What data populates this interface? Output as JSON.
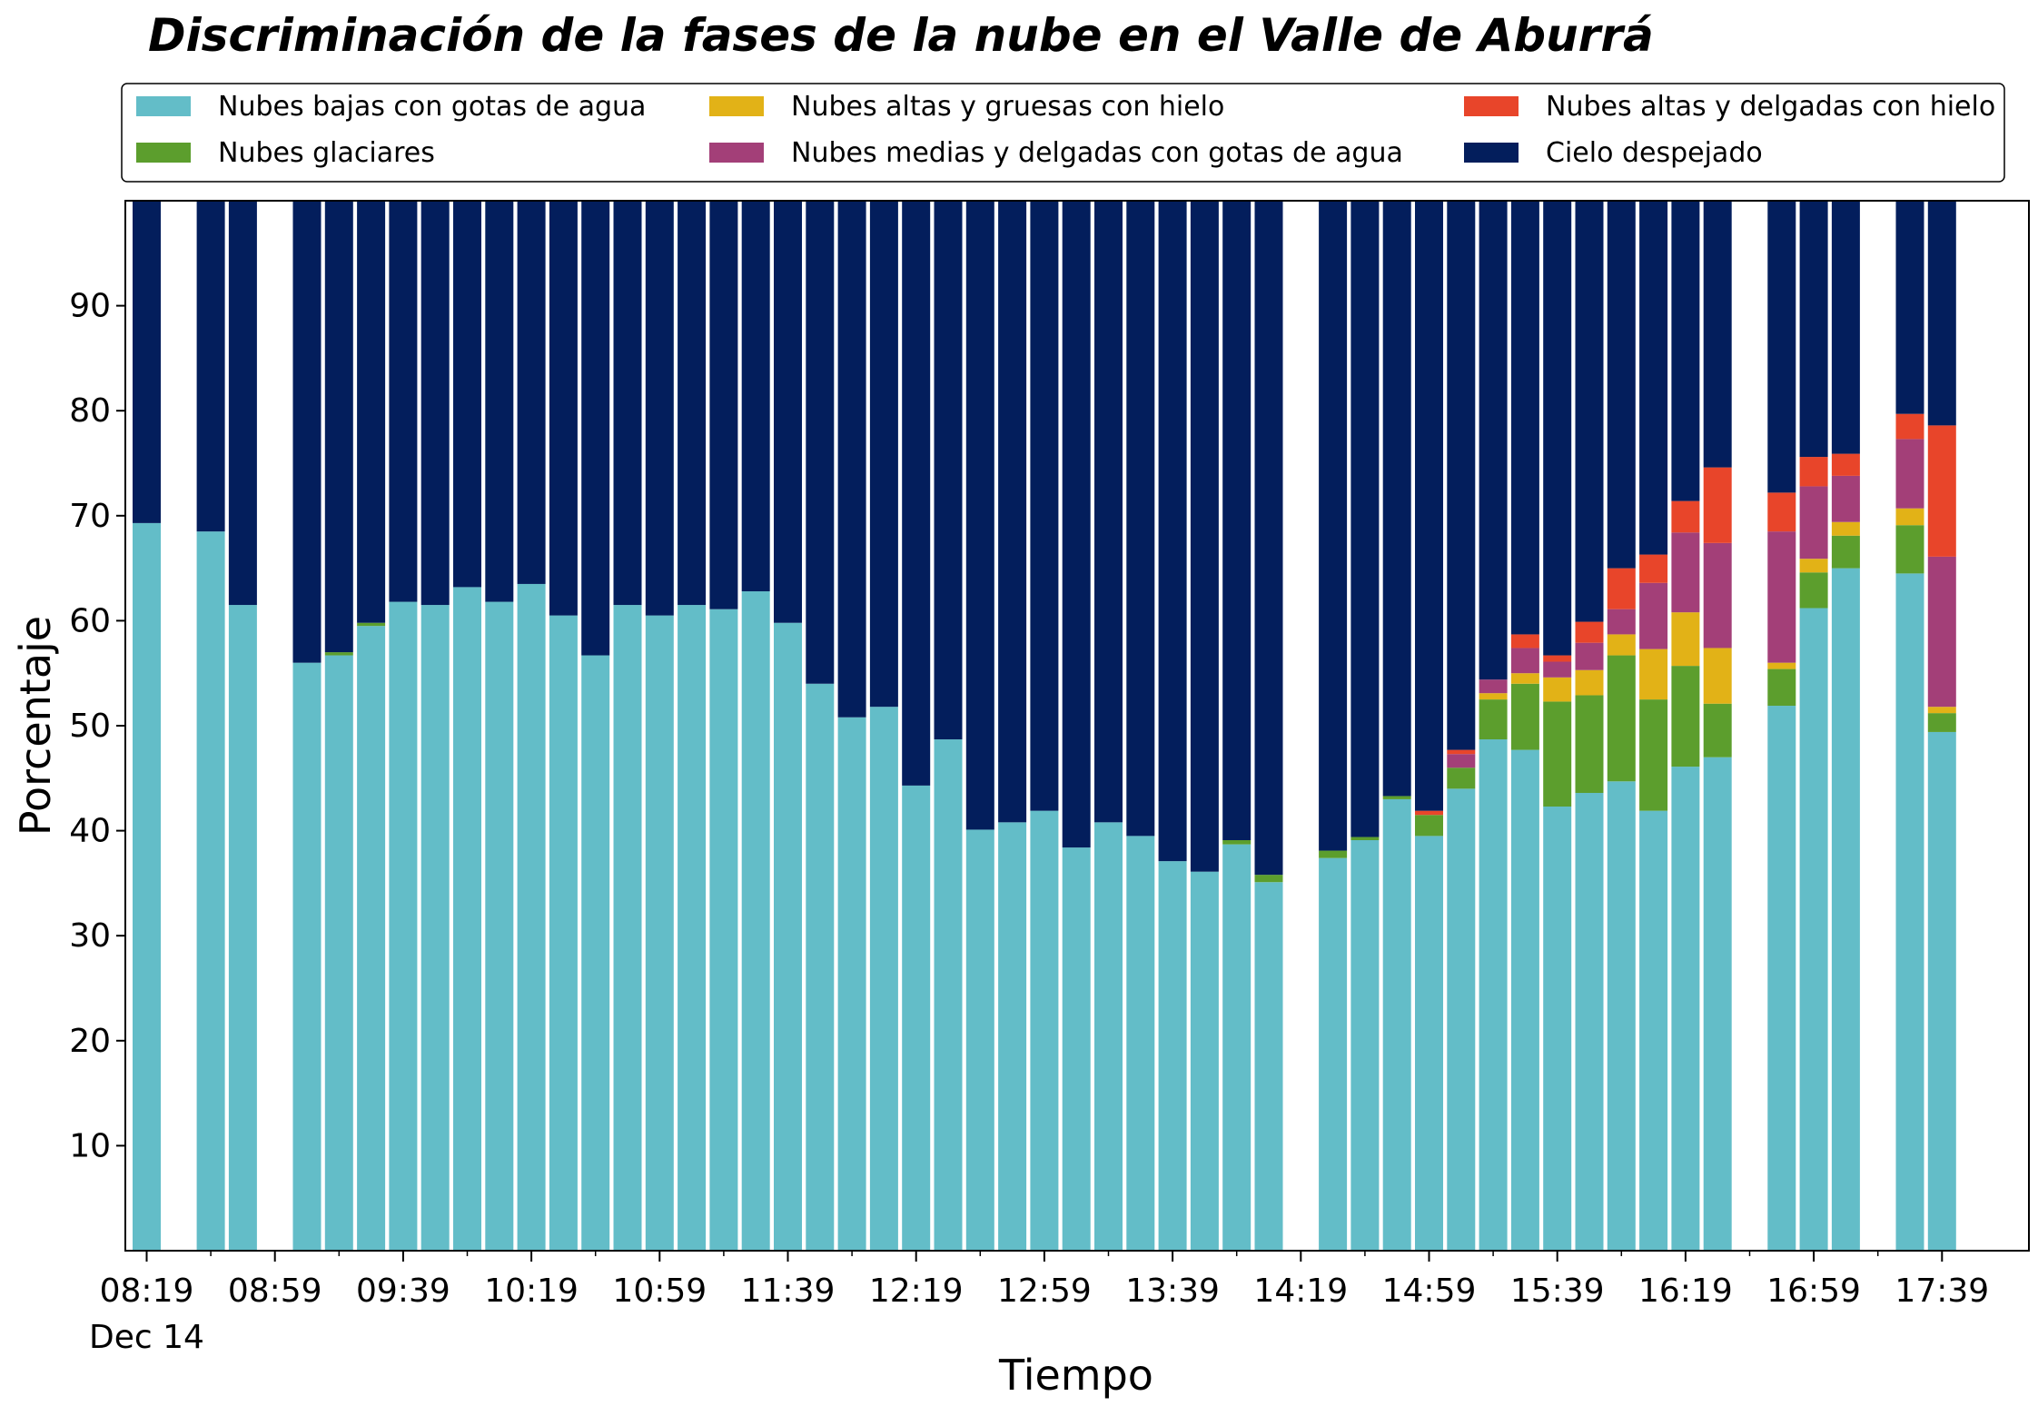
{
  "chart_data": {
    "type": "bar",
    "stacked": true,
    "title": "Discriminación de la fases de la nube en el Valle de Aburrá",
    "xlabel": "Tiempo",
    "ylabel": "Porcentaje",
    "ylim": [
      0,
      100
    ],
    "yticks": [
      10,
      20,
      30,
      40,
      50,
      60,
      70,
      80,
      90
    ],
    "x_slot_minutes": 10,
    "x_start": "08:19",
    "x_end": "17:49",
    "xticks": [
      "08:19",
      "08:59",
      "09:39",
      "10:19",
      "10:59",
      "11:39",
      "12:19",
      "12:59",
      "13:39",
      "14:19",
      "14:59",
      "15:39",
      "16:19",
      "16:59",
      "17:39"
    ],
    "xtick_sublabel": "Dec 14",
    "grid": false,
    "legend": {
      "position": "top",
      "columns": 3
    },
    "categories": [
      "08:19",
      "08:39",
      "08:49",
      "09:09",
      "09:19",
      "09:29",
      "09:39",
      "09:49",
      "09:59",
      "10:09",
      "10:19",
      "10:29",
      "10:39",
      "10:49",
      "10:59",
      "11:09",
      "11:19",
      "11:29",
      "11:39",
      "11:49",
      "11:59",
      "12:09",
      "12:19",
      "12:29",
      "12:39",
      "12:49",
      "12:59",
      "13:09",
      "13:19",
      "13:29",
      "13:39",
      "13:49",
      "13:59",
      "14:09",
      "14:29",
      "14:39",
      "14:49",
      "14:59",
      "15:09",
      "15:19",
      "15:29",
      "15:39",
      "15:49",
      "15:59",
      "16:09",
      "16:19",
      "16:29",
      "16:49",
      "16:59",
      "17:09",
      "17:29",
      "17:39",
      "17:59"
    ],
    "series": [
      {
        "name": "Nubes bajas con gotas de agua",
        "color": "#63bdc8",
        "values": [
          69.3,
          68.5,
          61.5,
          56,
          56.7,
          59.5,
          61.8,
          61.5,
          63.2,
          61.8,
          63.5,
          60.5,
          56.7,
          61.5,
          60.5,
          61.5,
          61.1,
          62.8,
          59.8,
          54,
          50.8,
          51.8,
          44.3,
          48.7,
          40.1,
          40.8,
          41.9,
          38.4,
          40.8,
          39.5,
          37.1,
          36.1,
          38.7,
          35.1,
          37.4,
          39.1,
          43,
          39.5,
          44,
          48.7,
          47.7,
          42.3,
          43.6,
          44.7,
          41.9,
          46.1,
          47,
          51.9,
          61.2,
          65,
          64.5,
          49.4,
          0
        ]
      },
      {
        "name": "Nubes glaciares",
        "color": "#5c9e2d",
        "values": [
          0,
          0,
          0,
          0,
          0.3,
          0.3,
          0,
          0,
          0,
          0,
          0,
          0,
          0,
          0,
          0,
          0,
          0,
          0,
          0,
          0,
          0,
          0,
          0,
          0,
          0,
          0,
          0,
          0,
          0,
          0,
          0,
          0,
          0.4,
          0.7,
          0.7,
          0.3,
          0.3,
          2,
          2,
          3.8,
          6.3,
          10,
          9.3,
          12,
          10.6,
          9.6,
          5.1,
          3.5,
          3.4,
          3.1,
          4.6,
          1.8,
          0
        ]
      },
      {
        "name": "Nubes altas y gruesas con hielo",
        "color": "#e2b217",
        "values": [
          0,
          0,
          0,
          0,
          0,
          0,
          0,
          0,
          0,
          0,
          0,
          0,
          0,
          0,
          0,
          0,
          0,
          0,
          0,
          0,
          0,
          0,
          0,
          0,
          0,
          0,
          0,
          0,
          0,
          0,
          0,
          0,
          0,
          0,
          0,
          0,
          0,
          0,
          0,
          0.6,
          1,
          2.3,
          2.4,
          2,
          4.8,
          5.1,
          5.3,
          0.6,
          1.3,
          1.3,
          1.6,
          0.6,
          0
        ]
      },
      {
        "name": "Nubes medias y delgadas con gotas de agua",
        "color": "#a33f78",
        "values": [
          0,
          0,
          0,
          0,
          0,
          0,
          0,
          0,
          0,
          0,
          0,
          0,
          0,
          0,
          0,
          0,
          0,
          0,
          0,
          0,
          0,
          0,
          0,
          0,
          0,
          0,
          0,
          0,
          0,
          0,
          0,
          0,
          0,
          0,
          0,
          0,
          0,
          0,
          1.3,
          1.3,
          2.4,
          1.5,
          2.6,
          2.4,
          6.3,
          7.6,
          10,
          12.5,
          6.9,
          4.4,
          6.6,
          14.3,
          0
        ]
      },
      {
        "name": "Nubes altas y delgadas con hielo",
        "color": "#e8452a",
        "values": [
          0,
          0,
          0,
          0,
          0,
          0,
          0,
          0,
          0,
          0,
          0,
          0,
          0,
          0,
          0,
          0,
          0,
          0,
          0,
          0,
          0,
          0,
          0,
          0,
          0,
          0,
          0,
          0,
          0,
          0,
          0,
          0,
          0,
          0,
          0,
          0,
          0,
          0.4,
          0.4,
          0,
          1.3,
          0.6,
          2,
          3.9,
          2.7,
          3,
          7.2,
          3.7,
          2.8,
          2.1,
          2.4,
          12.5,
          0
        ]
      },
      {
        "name": "Cielo despejado",
        "color": "#031e5c",
        "values": [
          30.7,
          31.5,
          38.5,
          44,
          43,
          40.2,
          38.2,
          38.5,
          36.8,
          38.2,
          36.5,
          39.5,
          43.3,
          38.5,
          39.5,
          38.5,
          38.9,
          37.2,
          40.2,
          46,
          49.2,
          48.2,
          55.7,
          51.3,
          59.9,
          59.2,
          58.1,
          61.6,
          59.2,
          60.5,
          62.9,
          63.9,
          60.9,
          64.2,
          61.9,
          60.6,
          56.7,
          58.1,
          52.3,
          45.6,
          41.3,
          43.3,
          40.1,
          35,
          33.7,
          28.6,
          25.4,
          27.8,
          24.4,
          24.1,
          20.3,
          21.4,
          0
        ]
      }
    ]
  }
}
